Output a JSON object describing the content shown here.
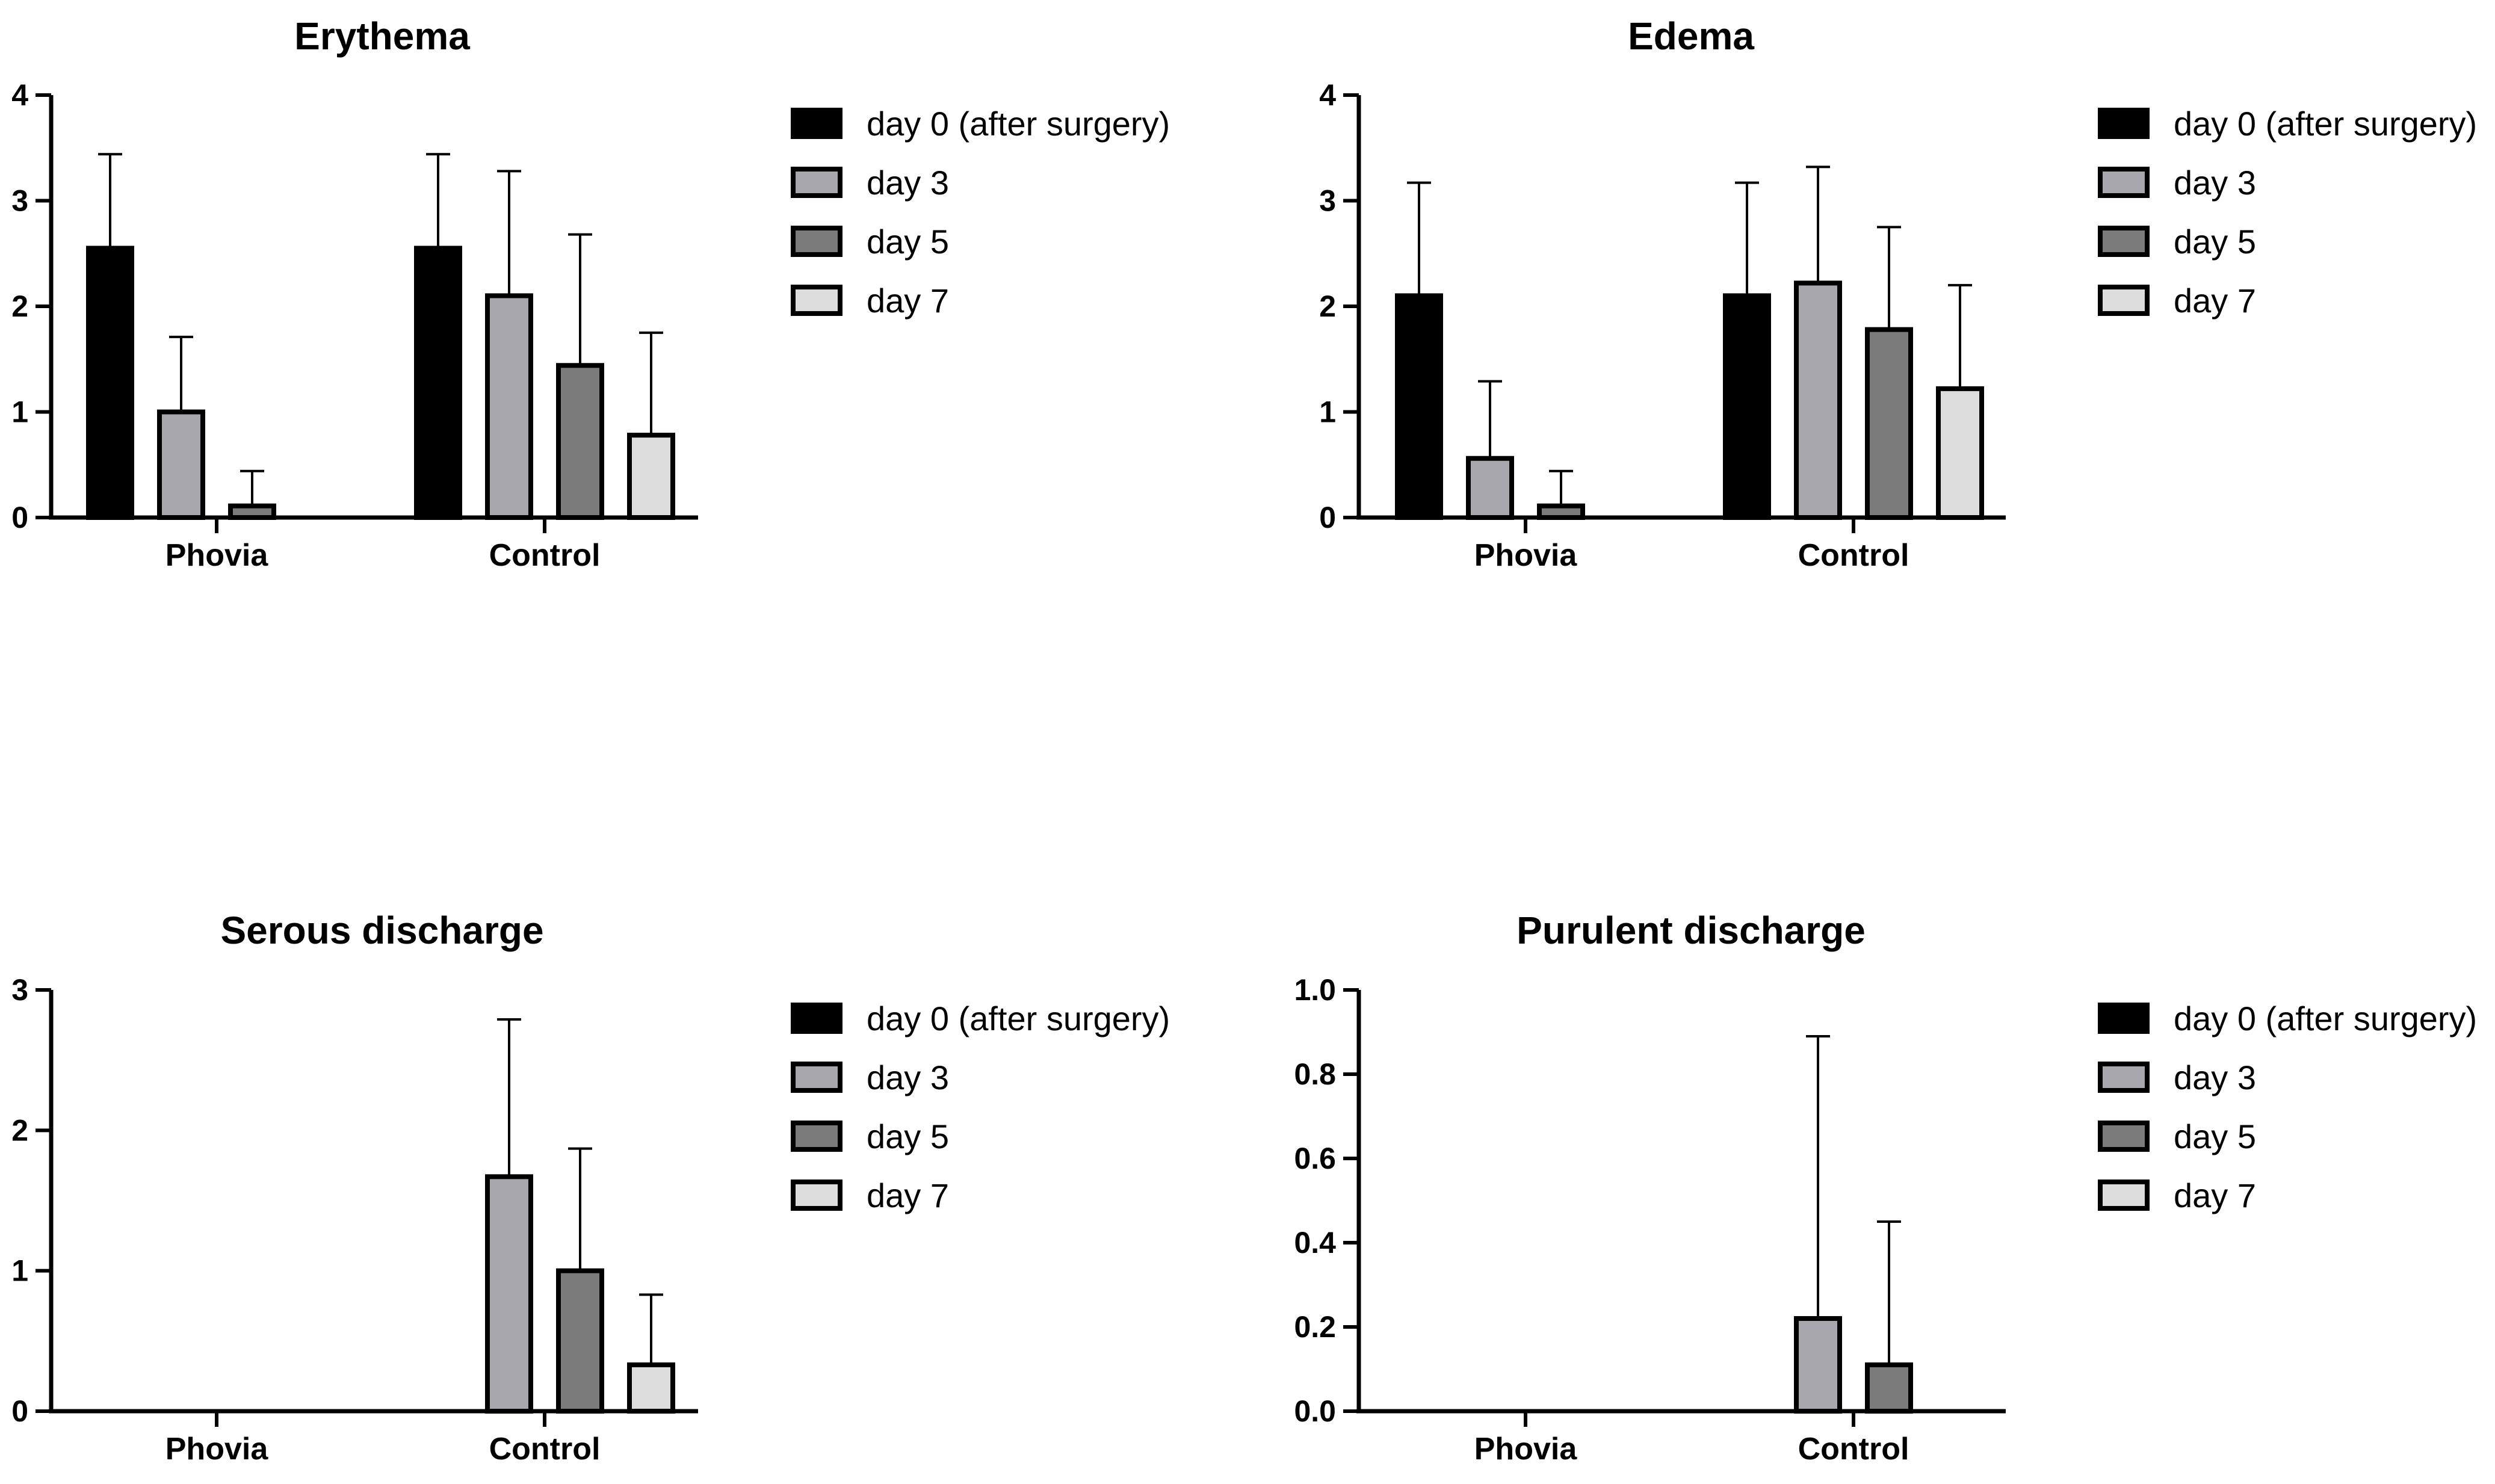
{
  "colors": {
    "series": [
      "#000000",
      "#a7a7ad",
      "#7b7b7b",
      "#dcdcdc"
    ],
    "stroke": "#000000",
    "background": "#ffffff"
  },
  "chart_data": [
    {
      "type": "bar",
      "title": "Erythema",
      "categories": [
        "Phovia",
        "Control"
      ],
      "series": [
        {
          "name": "day 0 (after surgery)",
          "values": [
            2.55,
            2.55
          ],
          "error": [
            0.89,
            0.89
          ]
        },
        {
          "name": "day 3",
          "values": [
            1.0,
            2.1
          ],
          "error": [
            0.71,
            1.18
          ]
        },
        {
          "name": "day 5",
          "values": [
            0.11,
            1.44
          ],
          "error": [
            0.33,
            1.24
          ]
        },
        {
          "name": "day 7",
          "values": [
            0,
            0.78
          ],
          "error": [
            0,
            0.97
          ]
        }
      ],
      "ylim": [
        0,
        4
      ],
      "yticks": [
        "0",
        "1",
        "2",
        "3",
        "4"
      ],
      "legend": "right",
      "grid": false
    },
    {
      "type": "bar",
      "title": "Edema",
      "categories": [
        "Phovia",
        "Control"
      ],
      "series": [
        {
          "name": "day 0 (after surgery)",
          "values": [
            2.1,
            2.1
          ],
          "error": [
            1.07,
            1.07
          ]
        },
        {
          "name": "day 3",
          "values": [
            0.56,
            2.22
          ],
          "error": [
            0.73,
            1.1
          ]
        },
        {
          "name": "day 5",
          "values": [
            0.11,
            1.78
          ],
          "error": [
            0.33,
            0.97
          ]
        },
        {
          "name": "day 7",
          "values": [
            0,
            1.22
          ],
          "error": [
            0,
            0.98
          ]
        }
      ],
      "ylim": [
        0,
        4
      ],
      "yticks": [
        "0",
        "1",
        "2",
        "3",
        "4"
      ],
      "legend": "right",
      "grid": false
    },
    {
      "type": "bar",
      "title": "Serous discharge",
      "categories": [
        "Phovia",
        "Control"
      ],
      "series": [
        {
          "name": "day 0 (after surgery)",
          "values": [
            0,
            0
          ],
          "error": [
            0,
            0
          ]
        },
        {
          "name": "day 3",
          "values": [
            0,
            1.67
          ],
          "error": [
            0,
            1.12
          ]
        },
        {
          "name": "day 5",
          "values": [
            0,
            1.0
          ],
          "error": [
            0,
            0.87
          ]
        },
        {
          "name": "day 7",
          "values": [
            0,
            0.33
          ],
          "error": [
            0,
            0.5
          ]
        }
      ],
      "ylim": [
        0,
        3
      ],
      "yticks": [
        "0",
        "1",
        "2",
        "3"
      ],
      "legend": "right",
      "grid": false
    },
    {
      "type": "bar",
      "title": "Purulent discharge",
      "categories": [
        "Phovia",
        "Control"
      ],
      "series": [
        {
          "name": "day 0 (after surgery)",
          "values": [
            0,
            0
          ],
          "error": [
            0,
            0
          ]
        },
        {
          "name": "day 3",
          "values": [
            0,
            0.22
          ],
          "error": [
            0,
            0.67
          ]
        },
        {
          "name": "day 5",
          "values": [
            0,
            0.11
          ],
          "error": [
            0,
            0.34
          ]
        },
        {
          "name": "day 7",
          "values": [
            0,
            0
          ],
          "error": [
            0,
            0
          ]
        }
      ],
      "ylim": [
        0,
        1
      ],
      "yticks": [
        "0.0",
        "0.2",
        "0.4",
        "0.6",
        "0.8",
        "1.0"
      ],
      "legend": "right",
      "grid": false
    }
  ]
}
